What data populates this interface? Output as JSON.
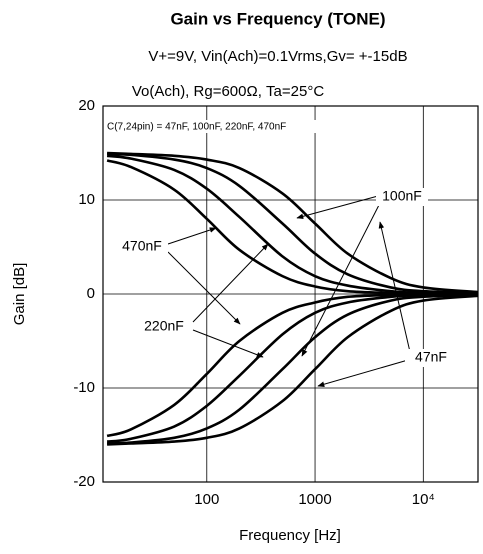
{
  "chart_data": {
    "type": "line",
    "title": "Gain vs Frequency  (TONE)",
    "subtitle": [
      "V+=9V, Vin(Ach)=0.1Vrms,Gv= +-15dB",
      "Vo(Ach), Rg=600Ω, Ta=25°C"
    ],
    "note": "C(7,24pin) = 47nF, 100nF, 220nF, 470nF",
    "x_label": "Frequency  [Hz]",
    "y_label": "Gain  [dB]",
    "x": [
      12,
      20,
      50,
      100,
      200,
      500,
      1000,
      2000,
      5000,
      10000,
      32000
    ],
    "x_log": true,
    "xlim": [
      11,
      32000
    ],
    "xticks": [
      100,
      1000,
      {
        "value": 10000,
        "label": "10⁴"
      }
    ],
    "ylim": [
      -20,
      20
    ],
    "yticks": [
      -20,
      -10,
      0,
      10,
      20
    ],
    "grid": true,
    "series": [
      {
        "color": "#000000",
        "values": [
          14.2,
          13.5,
          11.1,
          8.0,
          4.7,
          1.9,
          0.8,
          0.3,
          0.1,
          0,
          0
        ]
      },
      {
        "color": "#000000",
        "values": [
          14.7,
          14.4,
          13.2,
          11.2,
          8.2,
          4.0,
          1.9,
          0.9,
          0.3,
          0.1,
          0
        ]
      },
      {
        "color": "#000000",
        "values": [
          14.9,
          14.8,
          14.3,
          13.4,
          11.5,
          7.5,
          4.3,
          2.1,
          0.7,
          0.3,
          0.1
        ]
      },
      {
        "color": "#000000",
        "values": [
          15.0,
          14.9,
          14.7,
          14.3,
          13.4,
          10.7,
          7.5,
          4.3,
          1.7,
          0.7,
          0.2
        ]
      },
      {
        "color": "#000000",
        "values": [
          -15.1,
          -14.4,
          -11.8,
          -8.5,
          -5.0,
          -2.0,
          -0.9,
          -0.3,
          -0.1,
          0,
          0
        ]
      },
      {
        "color": "#000000",
        "values": [
          -15.7,
          -15.4,
          -14.1,
          -11.9,
          -8.7,
          -4.3,
          -2.0,
          -0.9,
          -0.3,
          -0.1,
          0
        ]
      },
      {
        "color": "#000000",
        "values": [
          -15.9,
          -15.8,
          -15.3,
          -14.3,
          -12.3,
          -8.0,
          -4.6,
          -2.2,
          -0.7,
          -0.3,
          -0.1
        ]
      },
      {
        "color": "#000000",
        "values": [
          -16.0,
          -15.9,
          -15.7,
          -15.3,
          -14.3,
          -11.4,
          -8.0,
          -4.6,
          -1.8,
          -0.7,
          -0.2
        ]
      }
    ],
    "annotations": [
      "470nF",
      "220nF",
      "100nF",
      "47nF"
    ]
  }
}
